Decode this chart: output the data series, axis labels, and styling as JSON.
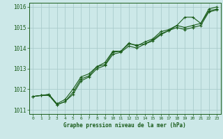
{
  "title": "Graphe pression niveau de la mer (hPa)",
  "bg_color": "#cce8e8",
  "grid_color": "#aacccc",
  "line_color": "#1a5c1a",
  "xlim": [
    -0.5,
    23.5
  ],
  "ylim": [
    1010.8,
    1016.2
  ],
  "xticks": [
    0,
    1,
    2,
    3,
    4,
    5,
    6,
    7,
    8,
    9,
    10,
    11,
    12,
    13,
    14,
    15,
    16,
    17,
    18,
    19,
    20,
    21,
    22,
    23
  ],
  "yticks": [
    1011,
    1012,
    1013,
    1014,
    1015,
    1016
  ],
  "line1_x": [
    0,
    1,
    2,
    3,
    4,
    5,
    6,
    7,
    8,
    9,
    10,
    11,
    12,
    13,
    14,
    15,
    16,
    17,
    18,
    19,
    20,
    21,
    22,
    23
  ],
  "line1_y": [
    1011.65,
    1011.7,
    1011.75,
    1011.25,
    1011.4,
    1011.85,
    1012.5,
    1012.65,
    1013.1,
    1013.2,
    1013.8,
    1013.85,
    1014.2,
    1014.15,
    1014.2,
    1014.4,
    1014.7,
    1014.85,
    1015.1,
    1015.0,
    1015.1,
    1015.2,
    1015.8,
    1015.9
  ],
  "line2_x": [
    0,
    1,
    2,
    3,
    4,
    5,
    6,
    7,
    8,
    9,
    10,
    11,
    12,
    13,
    14,
    15,
    16,
    17,
    18,
    19,
    20,
    21,
    22,
    23
  ],
  "line2_y": [
    1011.65,
    1011.7,
    1011.75,
    1011.3,
    1011.5,
    1012.0,
    1012.6,
    1012.75,
    1013.1,
    1013.3,
    1013.85,
    1013.85,
    1014.25,
    1014.1,
    1014.3,
    1014.45,
    1014.8,
    1014.9,
    1015.1,
    1015.5,
    1015.5,
    1015.2,
    1015.9,
    1016.0
  ],
  "line3_x": [
    0,
    1,
    2,
    3,
    4,
    5,
    6,
    7,
    8,
    9,
    10,
    11,
    12,
    13,
    14,
    15,
    16,
    17,
    18,
    19,
    20,
    21,
    22,
    23
  ],
  "line3_y": [
    1011.65,
    1011.7,
    1011.7,
    1011.25,
    1011.4,
    1011.75,
    1012.4,
    1012.6,
    1013.0,
    1013.15,
    1013.7,
    1013.8,
    1014.1,
    1014.0,
    1014.2,
    1014.35,
    1014.65,
    1014.85,
    1015.0,
    1014.9,
    1015.0,
    1015.1,
    1015.75,
    1015.85
  ]
}
